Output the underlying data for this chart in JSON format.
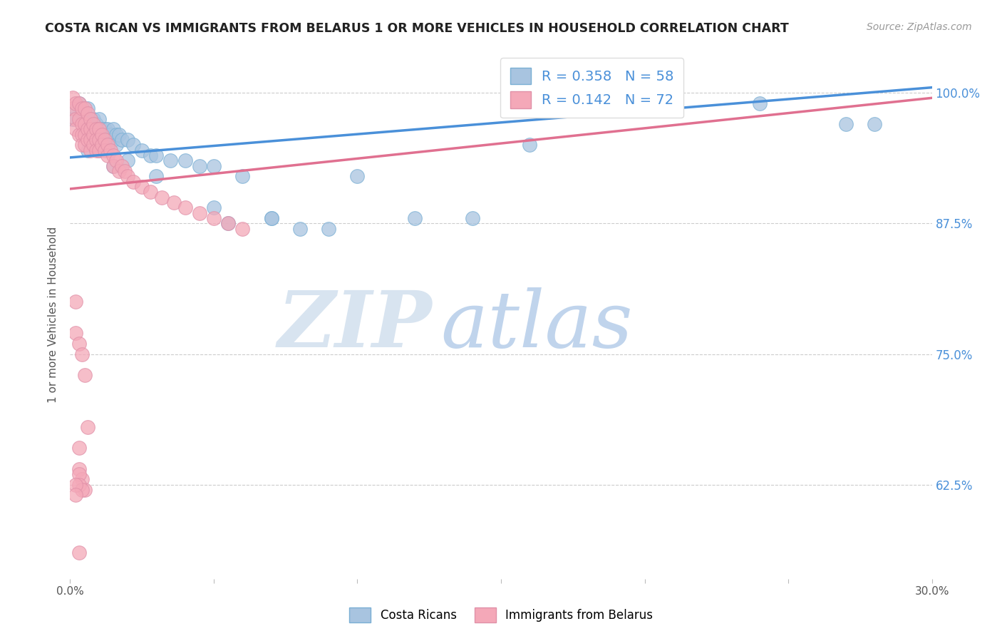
{
  "title": "COSTA RICAN VS IMMIGRANTS FROM BELARUS 1 OR MORE VEHICLES IN HOUSEHOLD CORRELATION CHART",
  "source": "Source: ZipAtlas.com",
  "ylabel": "1 or more Vehicles in Household",
  "ytick_labels": [
    "100.0%",
    "87.5%",
    "75.0%",
    "62.5%"
  ],
  "ytick_values": [
    1.0,
    0.875,
    0.75,
    0.625
  ],
  "xlim": [
    0.0,
    0.3
  ],
  "ylim": [
    0.535,
    1.04
  ],
  "blue_line_color": "#4a90d9",
  "pink_line_color": "#e07090",
  "blue_scatter_color": "#a8c4e0",
  "pink_scatter_color": "#f4a8b8",
  "blue_scatter_edge": "#7aafd4",
  "pink_scatter_edge": "#e090a8",
  "watermark_zip": "#c8d8ee",
  "watermark_atlas": "#b8d0ec",
  "background_color": "#ffffff",
  "grid_color": "#cccccc",
  "blue_R": 0.358,
  "blue_N": 58,
  "pink_R": 0.142,
  "pink_N": 72,
  "blue_line_x0": 0.0,
  "blue_line_y0": 0.938,
  "blue_line_x1": 0.3,
  "blue_line_y1": 1.005,
  "pink_line_x0": 0.0,
  "pink_line_y0": 0.908,
  "pink_line_x1": 0.3,
  "pink_line_y1": 0.995,
  "blue_dots_x": [
    0.001,
    0.002,
    0.003,
    0.004,
    0.005,
    0.005,
    0.006,
    0.006,
    0.007,
    0.007,
    0.008,
    0.008,
    0.009,
    0.009,
    0.01,
    0.01,
    0.011,
    0.011,
    0.012,
    0.012,
    0.013,
    0.013,
    0.014,
    0.015,
    0.015,
    0.016,
    0.016,
    0.017,
    0.018,
    0.02,
    0.022,
    0.025,
    0.028,
    0.03,
    0.035,
    0.04,
    0.045,
    0.05,
    0.055,
    0.06,
    0.07,
    0.08,
    0.09,
    0.1,
    0.12,
    0.14,
    0.16,
    0.2,
    0.24,
    0.27,
    0.006,
    0.01,
    0.015,
    0.02,
    0.03,
    0.05,
    0.07,
    0.28
  ],
  "blue_dots_y": [
    0.975,
    0.985,
    0.99,
    0.98,
    0.975,
    0.965,
    0.985,
    0.97,
    0.975,
    0.96,
    0.975,
    0.965,
    0.97,
    0.96,
    0.975,
    0.96,
    0.965,
    0.955,
    0.965,
    0.96,
    0.965,
    0.955,
    0.96,
    0.965,
    0.955,
    0.96,
    0.95,
    0.96,
    0.955,
    0.955,
    0.95,
    0.945,
    0.94,
    0.94,
    0.935,
    0.935,
    0.93,
    0.93,
    0.875,
    0.92,
    0.88,
    0.87,
    0.87,
    0.92,
    0.88,
    0.88,
    0.95,
    0.995,
    0.99,
    0.97,
    0.945,
    0.945,
    0.93,
    0.935,
    0.92,
    0.89,
    0.88,
    0.97
  ],
  "pink_dots_x": [
    0.001,
    0.001,
    0.002,
    0.002,
    0.002,
    0.003,
    0.003,
    0.003,
    0.004,
    0.004,
    0.004,
    0.004,
    0.005,
    0.005,
    0.005,
    0.005,
    0.006,
    0.006,
    0.006,
    0.007,
    0.007,
    0.007,
    0.007,
    0.008,
    0.008,
    0.008,
    0.009,
    0.009,
    0.009,
    0.01,
    0.01,
    0.01,
    0.011,
    0.011,
    0.012,
    0.012,
    0.013,
    0.013,
    0.014,
    0.015,
    0.015,
    0.016,
    0.017,
    0.018,
    0.019,
    0.02,
    0.022,
    0.025,
    0.028,
    0.032,
    0.036,
    0.04,
    0.045,
    0.05,
    0.055,
    0.06,
    0.002,
    0.002,
    0.003,
    0.004,
    0.005,
    0.006,
    0.003,
    0.003,
    0.004,
    0.005,
    0.003,
    0.003,
    0.004,
    0.002,
    0.002,
    0.003
  ],
  "pink_dots_y": [
    0.995,
    0.985,
    0.99,
    0.975,
    0.965,
    0.99,
    0.975,
    0.96,
    0.985,
    0.97,
    0.96,
    0.95,
    0.985,
    0.97,
    0.96,
    0.95,
    0.98,
    0.965,
    0.955,
    0.975,
    0.965,
    0.955,
    0.945,
    0.97,
    0.96,
    0.95,
    0.965,
    0.955,
    0.945,
    0.965,
    0.955,
    0.945,
    0.96,
    0.95,
    0.955,
    0.945,
    0.95,
    0.94,
    0.945,
    0.94,
    0.93,
    0.935,
    0.925,
    0.93,
    0.925,
    0.92,
    0.915,
    0.91,
    0.905,
    0.9,
    0.895,
    0.89,
    0.885,
    0.88,
    0.875,
    0.87,
    0.8,
    0.77,
    0.76,
    0.75,
    0.73,
    0.68,
    0.66,
    0.64,
    0.63,
    0.62,
    0.635,
    0.625,
    0.62,
    0.625,
    0.615,
    0.56
  ]
}
